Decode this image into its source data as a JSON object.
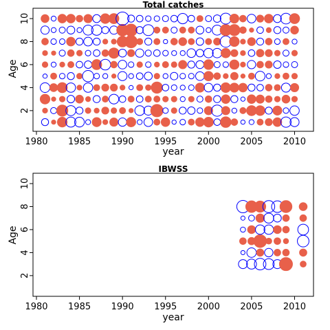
{
  "chart_data": [
    {
      "type": "bubble",
      "title": "Total catches",
      "xlabel": "year",
      "ylabel": "Age",
      "xlim": [
        1979.6,
        2012.2
      ],
      "ylim": [
        0.2,
        10.9
      ],
      "xticks": [
        1980,
        1985,
        1990,
        1995,
        2000,
        2005,
        2010
      ],
      "yticks": [
        2,
        4,
        6,
        8,
        10
      ],
      "years": [
        1981,
        1982,
        1983,
        1984,
        1985,
        1986,
        1987,
        1988,
        1989,
        1990,
        1991,
        1992,
        1993,
        1994,
        1995,
        1996,
        1997,
        1998,
        1999,
        2000,
        2001,
        2002,
        2003,
        2004,
        2005,
        2006,
        2007,
        2008,
        2009,
        2010
      ],
      "ages": [
        1,
        2,
        3,
        4,
        5,
        6,
        7,
        8,
        9,
        10
      ],
      "colors": {
        "positive": "#e8604a",
        "negative": "#0000ff"
      },
      "residuals": [
        [
          -0.8,
          0.4,
          1.5,
          -1.5,
          -0.3,
          0.5,
          0.4,
          0.7,
          -1.1,
          1.0
        ],
        [
          0.3,
          -0.6,
          0.3,
          1.0,
          0.6,
          -0.4,
          0.3,
          -0.5,
          -0.4,
          -0.4
        ],
        [
          1.5,
          2.0,
          0.5,
          1.6,
          -0.5,
          0.4,
          -0.6,
          -0.5,
          -0.6,
          1.2
        ],
        [
          -1.6,
          -1.6,
          -0.9,
          -1.4,
          -0.8,
          0.6,
          0.7,
          1.2,
          -1.0,
          1.2
        ],
        [
          -1.5,
          -0.8,
          1.0,
          0.4,
          0.5,
          -0.7,
          0.5,
          -0.8,
          -0.4,
          0.7
        ],
        [
          -0.4,
          0.5,
          0.4,
          -1.4,
          -2.0,
          -0.9,
          -0.5,
          -1.2,
          -1.6,
          1.1
        ],
        [
          1.3,
          0.4,
          -0.8,
          0.6,
          -0.5,
          1.6,
          -0.7,
          -0.8,
          -1.7,
          -1.0
        ],
        [
          0.4,
          0.8,
          0.6,
          0.8,
          -0.4,
          -1.8,
          0.7,
          0.4,
          -0.8,
          1.5
        ],
        [
          1.1,
          0.5,
          -1.5,
          0.8,
          0.3,
          0.7,
          1.7,
          0.4,
          -1.1,
          1.6
        ],
        [
          -1.1,
          0.6,
          -0.7,
          0.4,
          -1.3,
          -1.2,
          -1.0,
          1.8,
          2.1,
          -2.7
        ],
        [
          1.4,
          0.3,
          0.6,
          -0.3,
          -0.4,
          -0.5,
          0.8,
          2.4,
          2.3,
          -0.8
        ],
        [
          -0.4,
          -1.5,
          -0.7,
          0.6,
          -0.7,
          0.5,
          -1.1,
          0.6,
          -0.8,
          -0.7
        ],
        [
          -1.2,
          -1.3,
          0.6,
          0.5,
          -1.0,
          -0.5,
          -0.6,
          -0.8,
          -1.9,
          -0.5
        ],
        [
          0.6,
          2.4,
          0.6,
          2.0,
          0.5,
          0.4,
          -0.7,
          0.6,
          0.6,
          -0.5
        ],
        [
          1.2,
          -0.5,
          0.5,
          -0.7,
          -0.4,
          0.6,
          -0.5,
          -0.3,
          0.6,
          -0.6
        ],
        [
          -0.3,
          0.5,
          0.5,
          -0.5,
          -0.9,
          0.5,
          -0.4,
          0.7,
          -0.6,
          -0.7
        ],
        [
          -0.5,
          -0.8,
          -0.4,
          -0.4,
          -0.5,
          1.1,
          -0.4,
          1.0,
          0.6,
          -1.7
        ],
        [
          0.6,
          -0.9,
          0.5,
          -0.5,
          -0.5,
          -0.8,
          -1.2,
          0.6,
          0.6,
          -0.7
        ],
        [
          1.2,
          -0.5,
          -0.6,
          1.3,
          -1.2,
          -1.0,
          -0.9,
          -0.9,
          -1.0,
          0.6
        ],
        [
          1.5,
          1.1,
          0.7,
          -1.2,
          1.4,
          1.5,
          -1.4,
          0.6,
          -0.4,
          -0.6
        ],
        [
          -0.7,
          -2.0,
          -0.8,
          -0.8,
          0.7,
          -0.6,
          -1.4,
          0.8,
          -1.6,
          -0.9
        ],
        [
          1.8,
          1.1,
          1.2,
          1.5,
          0.4,
          -0.5,
          1.4,
          -2.0,
          2.0,
          -1.9
        ],
        [
          0.7,
          -0.4,
          -0.8,
          1.3,
          0.9,
          1.4,
          0.8,
          1.5,
          2.0,
          1.3
        ],
        [
          -0.3,
          0.6,
          -0.3,
          1.2,
          0.3,
          0.4,
          0.4,
          0.4,
          0.7,
          0.7
        ],
        [
          -0.4,
          1.6,
          1.2,
          -0.8,
          0.6,
          -1.1,
          -0.7,
          1.0,
          0.3,
          -1.2
        ],
        [
          0.6,
          1.5,
          1.1,
          -0.7,
          -1.5,
          0.7,
          0.9,
          -0.8,
          -0.7,
          0.8
        ],
        [
          0.8,
          -0.8,
          0.7,
          0.7,
          -0.4,
          0.8,
          0.8,
          0.7,
          0.4,
          1.2
        ],
        [
          1.2,
          1.3,
          0.5,
          0.6,
          0.4,
          -0.9,
          0.5,
          -0.5,
          -0.8,
          -1.0
        ],
        [
          -1.7,
          -0.5,
          1.0,
          -1.3,
          0.6,
          -0.5,
          -0.6,
          0.6,
          -0.6,
          -1.8
        ],
        [
          -1.3,
          -1.4,
          0.5,
          1.1,
          0.5,
          -0.6,
          0.5,
          -0.4,
          1.0,
          1.6
        ]
      ]
    },
    {
      "type": "bubble",
      "title": "IBWSS",
      "xlabel": "year",
      "ylabel": "Age",
      "xlim": [
        1979.6,
        2012.2
      ],
      "ylim": [
        0.2,
        10.9
      ],
      "xticks": [
        1980,
        1985,
        1990,
        1995,
        2000,
        2005,
        2010
      ],
      "yticks": [
        2,
        4,
        6,
        8,
        10
      ],
      "years": [
        2004,
        2005,
        2006,
        2007,
        2008,
        2009,
        2011
      ],
      "ages": [
        3,
        4,
        5,
        6,
        7,
        8
      ],
      "colors": {
        "positive": "#e8604a",
        "negative": "#0000ff"
      },
      "residuals": [
        [
          -0.9,
          -0.2,
          0.5,
          -0.3,
          -0.2,
          -1.7
        ],
        [
          -1.1,
          -1.0,
          0.6,
          0.7,
          -0.4,
          1.5
        ],
        [
          -1.5,
          0.6,
          1.8,
          -1.0,
          0.8,
          1.4
        ],
        [
          -1.3,
          -0.8,
          0.4,
          -1.0,
          -1.1,
          -1.6
        ],
        [
          -0.9,
          0.5,
          0.5,
          0.7,
          -0.7,
          -1.5
        ],
        [
          1.9,
          0.5,
          0.3,
          0.5,
          0.5,
          1.6
        ],
        [
          0.4,
          0.6,
          -1.5,
          -1.3,
          0.5,
          0.7
        ]
      ]
    }
  ]
}
